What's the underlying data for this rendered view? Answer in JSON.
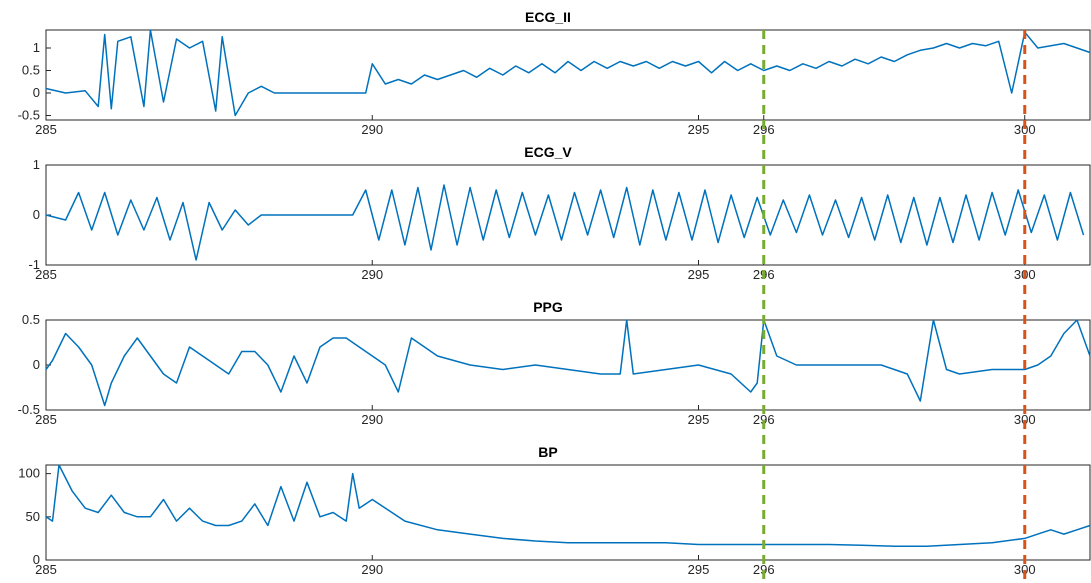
{
  "chart_data": [
    {
      "type": "line",
      "title": "ECG_II",
      "xlim": [
        285,
        301
      ],
      "ylim": [
        -0.6,
        1.4
      ],
      "xticks": [
        "285",
        "290",
        "295",
        "296",
        "300"
      ],
      "yticks": [
        "1",
        "0.5",
        "0",
        "-0.5"
      ],
      "series": [
        {
          "color": "#0072BD",
          "x": [
            285.0,
            285.3,
            285.6,
            285.8,
            285.9,
            286.0,
            286.1,
            286.3,
            286.5,
            286.6,
            286.8,
            287.0,
            287.2,
            287.4,
            287.6,
            287.7,
            287.9,
            288.1,
            288.3,
            288.5,
            288.7,
            288.9,
            289.1,
            289.3,
            289.5,
            289.7,
            289.9,
            290.0,
            290.2,
            290.4,
            290.6,
            290.8,
            291.0,
            291.2,
            291.4,
            291.6,
            291.8,
            292.0,
            292.2,
            292.4,
            292.6,
            292.8,
            293.0,
            293.2,
            293.4,
            293.6,
            293.8,
            294.0,
            294.2,
            294.4,
            294.6,
            294.8,
            295.0,
            295.2,
            295.4,
            295.6,
            295.8,
            296.0,
            296.2,
            296.4,
            296.6,
            296.8,
            297.0,
            297.2,
            297.4,
            297.6,
            297.8,
            298.0,
            298.2,
            298.4,
            298.6,
            298.8,
            299.0,
            299.2,
            299.4,
            299.6,
            299.8,
            300.0,
            300.2,
            300.4,
            300.6,
            300.8,
            301.0
          ],
          "y": [
            0.1,
            0.0,
            0.05,
            -0.3,
            1.3,
            -0.35,
            1.15,
            1.25,
            -0.3,
            1.4,
            -0.2,
            1.2,
            1.0,
            1.15,
            -0.4,
            1.25,
            -0.5,
            0.0,
            0.15,
            0.0,
            0.0,
            0.0,
            0.0,
            0.0,
            0.0,
            0.0,
            0.0,
            0.65,
            0.2,
            0.3,
            0.2,
            0.4,
            0.3,
            0.4,
            0.5,
            0.35,
            0.55,
            0.4,
            0.6,
            0.45,
            0.65,
            0.45,
            0.7,
            0.5,
            0.7,
            0.55,
            0.7,
            0.6,
            0.7,
            0.55,
            0.7,
            0.6,
            0.7,
            0.45,
            0.7,
            0.5,
            0.65,
            0.5,
            0.6,
            0.5,
            0.65,
            0.55,
            0.7,
            0.6,
            0.75,
            0.65,
            0.8,
            0.7,
            0.85,
            0.95,
            1.0,
            1.1,
            1.0,
            1.1,
            1.05,
            1.15,
            0.0,
            1.35,
            1.0,
            1.05,
            1.1,
            1.0,
            0.9
          ]
        }
      ]
    },
    {
      "type": "line",
      "title": "ECG_V",
      "xlim": [
        285,
        301
      ],
      "ylim": [
        -1.0,
        1.0
      ],
      "xticks": [
        "285",
        "290",
        "295",
        "296",
        "300"
      ],
      "yticks": [
        "1",
        "0",
        "-1"
      ],
      "series": [
        {
          "color": "#0072BD",
          "x": [
            285.0,
            285.3,
            285.5,
            285.7,
            285.9,
            286.1,
            286.3,
            286.5,
            286.7,
            286.9,
            287.1,
            287.3,
            287.5,
            287.7,
            287.9,
            288.1,
            288.3,
            288.5,
            288.7,
            288.9,
            289.1,
            289.3,
            289.5,
            289.7,
            289.9,
            290.1,
            290.3,
            290.5,
            290.7,
            290.9,
            291.1,
            291.3,
            291.5,
            291.7,
            291.9,
            292.1,
            292.3,
            292.5,
            292.7,
            292.9,
            293.1,
            293.3,
            293.5,
            293.7,
            293.9,
            294.1,
            294.3,
            294.5,
            294.7,
            294.9,
            295.1,
            295.3,
            295.5,
            295.7,
            295.9,
            296.1,
            296.3,
            296.5,
            296.7,
            296.9,
            297.1,
            297.3,
            297.5,
            297.7,
            297.9,
            298.1,
            298.3,
            298.5,
            298.7,
            298.9,
            299.1,
            299.3,
            299.5,
            299.7,
            299.9,
            300.1,
            300.3,
            300.5,
            300.7,
            300.9
          ],
          "y": [
            0.0,
            -0.1,
            0.45,
            -0.3,
            0.45,
            -0.4,
            0.3,
            -0.3,
            0.35,
            -0.5,
            0.25,
            -0.9,
            0.25,
            -0.3,
            0.1,
            -0.2,
            0.0,
            0.0,
            0.0,
            0.0,
            0.0,
            0.0,
            0.0,
            0.0,
            0.5,
            -0.5,
            0.5,
            -0.6,
            0.55,
            -0.7,
            0.6,
            -0.6,
            0.55,
            -0.5,
            0.5,
            -0.45,
            0.45,
            -0.4,
            0.4,
            -0.5,
            0.45,
            -0.4,
            0.5,
            -0.45,
            0.55,
            -0.6,
            0.5,
            -0.5,
            0.45,
            -0.5,
            0.5,
            -0.55,
            0.4,
            -0.45,
            0.35,
            -0.4,
            0.3,
            -0.35,
            0.4,
            -0.4,
            0.3,
            -0.45,
            0.35,
            -0.5,
            0.4,
            -0.55,
            0.35,
            -0.6,
            0.35,
            -0.55,
            0.4,
            -0.5,
            0.45,
            -0.4,
            0.5,
            -0.35,
            0.4,
            -0.5,
            0.45,
            -0.4
          ]
        }
      ]
    },
    {
      "type": "line",
      "title": "PPG",
      "xlim": [
        285,
        301
      ],
      "ylim": [
        -0.5,
        0.5
      ],
      "xticks": [
        "285",
        "290",
        "295",
        "296",
        "300"
      ],
      "yticks": [
        "0.5",
        "0",
        "-0.5"
      ],
      "series": [
        {
          "color": "#0072BD",
          "x": [
            285.0,
            285.1,
            285.3,
            285.5,
            285.7,
            285.9,
            286.0,
            286.2,
            286.4,
            286.6,
            286.8,
            287.0,
            287.2,
            287.4,
            287.6,
            287.8,
            288.0,
            288.2,
            288.4,
            288.6,
            288.8,
            289.0,
            289.2,
            289.4,
            289.6,
            289.8,
            290.0,
            290.2,
            290.4,
            290.6,
            290.8,
            291.0,
            291.5,
            292.0,
            292.5,
            293.0,
            293.5,
            293.8,
            293.9,
            294.0,
            294.5,
            295.0,
            295.5,
            295.8,
            295.9,
            296.0,
            296.2,
            296.5,
            297.0,
            297.5,
            297.8,
            298.0,
            298.2,
            298.4,
            298.6,
            298.8,
            299.0,
            299.5,
            300.0,
            300.2,
            300.4,
            300.6,
            300.8,
            301.0
          ],
          "y": [
            -0.05,
            0.05,
            0.35,
            0.2,
            0.0,
            -0.45,
            -0.2,
            0.1,
            0.3,
            0.1,
            -0.1,
            -0.2,
            0.2,
            0.1,
            0.0,
            -0.1,
            0.15,
            0.15,
            0.0,
            -0.3,
            0.1,
            -0.2,
            0.2,
            0.3,
            0.3,
            0.2,
            0.1,
            0.0,
            -0.3,
            0.3,
            0.2,
            0.1,
            0.0,
            -0.05,
            0.0,
            -0.05,
            -0.1,
            -0.1,
            0.5,
            -0.1,
            -0.05,
            0.0,
            -0.1,
            -0.3,
            -0.2,
            0.5,
            0.1,
            0.0,
            0.0,
            0.0,
            0.0,
            -0.05,
            -0.1,
            -0.4,
            0.5,
            -0.05,
            -0.1,
            -0.05,
            -0.05,
            0.0,
            0.1,
            0.35,
            0.5,
            0.1
          ]
        }
      ]
    },
    {
      "type": "line",
      "title": "BP",
      "xlim": [
        285,
        301
      ],
      "ylim": [
        0,
        110
      ],
      "xticks": [
        "285",
        "290",
        "295",
        "296",
        "300"
      ],
      "yticks": [
        "100",
        "50",
        "0"
      ],
      "series": [
        {
          "color": "#0072BD",
          "x": [
            285.0,
            285.1,
            285.2,
            285.4,
            285.6,
            285.8,
            286.0,
            286.2,
            286.4,
            286.6,
            286.8,
            287.0,
            287.2,
            287.4,
            287.6,
            287.8,
            288.0,
            288.2,
            288.4,
            288.6,
            288.8,
            289.0,
            289.2,
            289.4,
            289.6,
            289.7,
            289.8,
            290.0,
            290.5,
            291.0,
            291.5,
            292.0,
            292.5,
            293.0,
            293.5,
            294.0,
            294.5,
            295.0,
            295.5,
            296.0,
            296.5,
            297.0,
            297.5,
            298.0,
            298.5,
            299.0,
            299.5,
            300.0,
            300.2,
            300.4,
            300.6,
            300.8,
            301.0
          ],
          "y": [
            50,
            45,
            110,
            80,
            60,
            55,
            75,
            55,
            50,
            50,
            70,
            45,
            60,
            45,
            40,
            40,
            45,
            65,
            40,
            85,
            45,
            90,
            50,
            55,
            45,
            100,
            60,
            70,
            45,
            35,
            30,
            25,
            22,
            20,
            20,
            20,
            20,
            18,
            18,
            18,
            18,
            18,
            17,
            16,
            16,
            18,
            20,
            25,
            30,
            35,
            30,
            35,
            40
          ]
        }
      ]
    }
  ],
  "markers": [
    {
      "x": 296,
      "color": "#77AC30",
      "label": "296"
    },
    {
      "x": 300,
      "color": "#D95319",
      "label": "300"
    }
  ]
}
